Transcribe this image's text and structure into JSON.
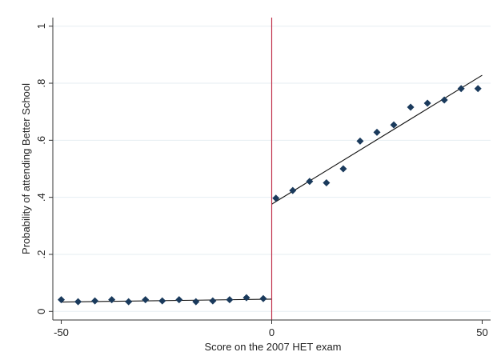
{
  "chart_data": {
    "type": "scatter",
    "title": "",
    "xlabel": "Score on the 2007 HET exam",
    "ylabel": "Probability of attending Better School",
    "xlim": [
      -52,
      52
    ],
    "ylim": [
      -0.03,
      1.03
    ],
    "xticks": [
      -50,
      0,
      50
    ],
    "xtick_labels": [
      "-50",
      "0",
      "50"
    ],
    "yticks": [
      0,
      0.2,
      0.4,
      0.6,
      0.8,
      1
    ],
    "ytick_labels": [
      "0",
      ".2",
      ".4",
      ".6",
      ".8",
      "1"
    ],
    "grid": "horizontal",
    "cutoff_x": 0,
    "cutoff_color": "#c0304a",
    "marker_color": "#1a3a5c",
    "fit_color": "#111111",
    "points": [
      {
        "x": -50,
        "y": 0.041
      },
      {
        "x": -46,
        "y": 0.034
      },
      {
        "x": -42,
        "y": 0.037
      },
      {
        "x": -38,
        "y": 0.041
      },
      {
        "x": -34,
        "y": 0.034
      },
      {
        "x": -30,
        "y": 0.041
      },
      {
        "x": -26,
        "y": 0.037
      },
      {
        "x": -22,
        "y": 0.041
      },
      {
        "x": -18,
        "y": 0.034
      },
      {
        "x": -14,
        "y": 0.037
      },
      {
        "x": -10,
        "y": 0.041
      },
      {
        "x": -6,
        "y": 0.048
      },
      {
        "x": -2,
        "y": 0.045
      },
      {
        "x": 1,
        "y": 0.397
      },
      {
        "x": 5,
        "y": 0.424
      },
      {
        "x": 9,
        "y": 0.456
      },
      {
        "x": 13,
        "y": 0.451
      },
      {
        "x": 17,
        "y": 0.5
      },
      {
        "x": 21,
        "y": 0.597
      },
      {
        "x": 25,
        "y": 0.628
      },
      {
        "x": 29,
        "y": 0.654
      },
      {
        "x": 33,
        "y": 0.716
      },
      {
        "x": 37,
        "y": 0.73
      },
      {
        "x": 41,
        "y": 0.741
      },
      {
        "x": 45,
        "y": 0.781
      },
      {
        "x": 49,
        "y": 0.781
      }
    ],
    "fit_lines": [
      {
        "x": [
          -50,
          0
        ],
        "y": [
          0.033,
          0.043
        ]
      },
      {
        "x": [
          0,
          50
        ],
        "y": [
          0.376,
          0.828
        ]
      }
    ]
  }
}
